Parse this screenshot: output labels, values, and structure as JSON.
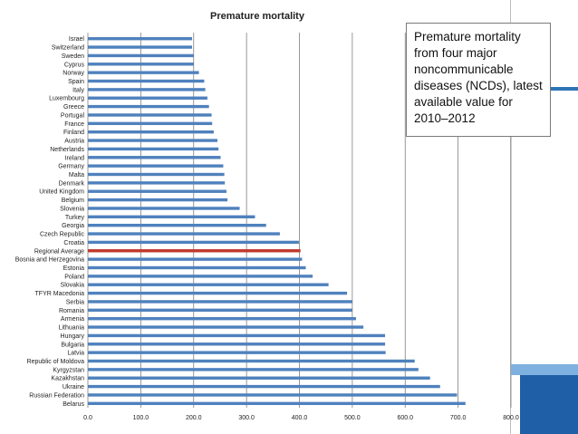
{
  "note": {
    "text": "Premature mortality from four major noncommunicable diseases (NCDs), latest available value for 2010–2012"
  },
  "colors": {
    "bar": "#4f81bd",
    "highlight": "#c0392b",
    "grid": "#7f7f7f"
  },
  "chart_data": {
    "type": "bar",
    "orientation": "horizontal",
    "title": "Premature mortality",
    "xlabel": "",
    "ylabel": "",
    "xlim": [
      0,
      800
    ],
    "xticks": [
      "0.0",
      "100.0",
      "200.0",
      "300.0",
      "400.0",
      "500.0",
      "600.0",
      "700.0",
      "800.0"
    ],
    "highlight_category": "Regional Average",
    "categories": [
      "Israel",
      "Switzerland",
      "Sweden",
      "Cyprus",
      "Norway",
      "Spain",
      "Italy",
      "Luxembourg",
      "Greece",
      "Portugal",
      "France",
      "Finland",
      "Austria",
      "Netherlands",
      "Ireland",
      "Germany",
      "Malta",
      "Denmark",
      "United Kingdom",
      "Belgium",
      "Slovenia",
      "Turkey",
      "Georgia",
      "Czech Republic",
      "Croatia",
      "Regional Average",
      "Bosnia and Herzegovina",
      "Estonia",
      "Poland",
      "Slovakia",
      "TFYR Macedonia",
      "Serbia",
      "Romania",
      "Armenia",
      "Lithuania",
      "Hungary",
      "Bulgaria",
      "Latvia",
      "Republic of Moldova",
      "Kyrgyzstan",
      "Kazakhstan",
      "Ukraine",
      "Russian Federation",
      "Belarus"
    ],
    "values": [
      197,
      197,
      200,
      200,
      210,
      220,
      222,
      226,
      229,
      234,
      235,
      238,
      245,
      247,
      251,
      256,
      258,
      259,
      262,
      264,
      287,
      316,
      337,
      363,
      399,
      402,
      405,
      412,
      425,
      455,
      490,
      500,
      500,
      507,
      521,
      562,
      562,
      563,
      618,
      625,
      647,
      666,
      698,
      714
    ]
  }
}
